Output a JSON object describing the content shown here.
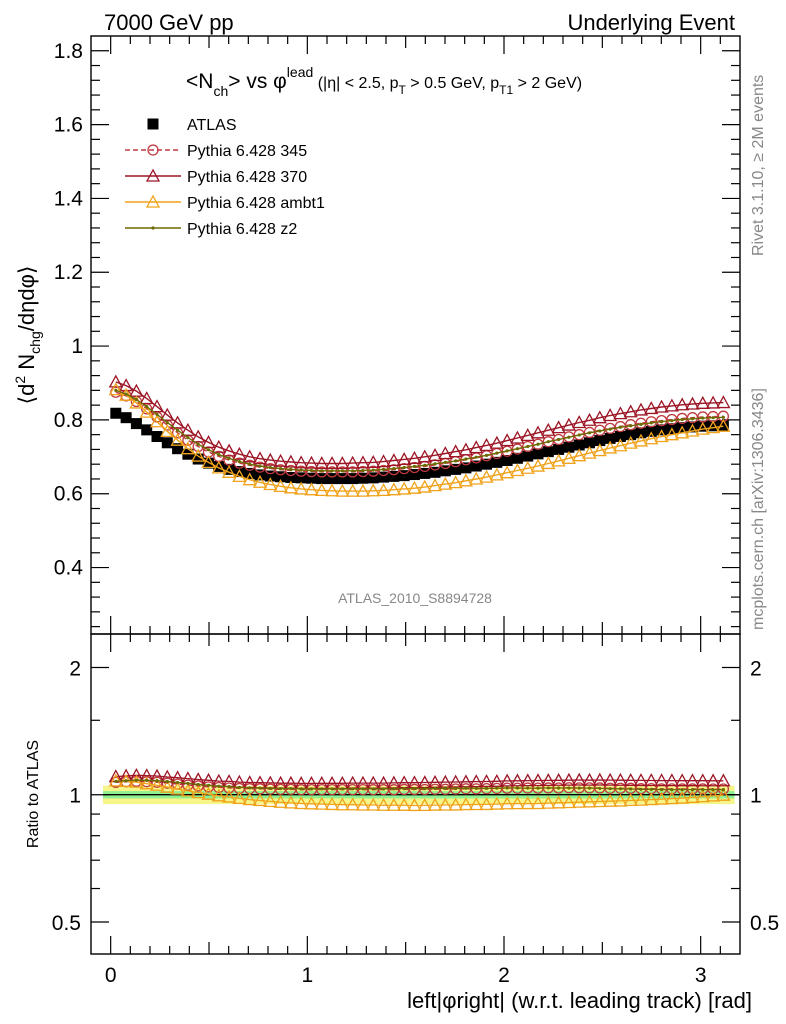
{
  "header": {
    "left": "7000 GeV pp",
    "right": "Underlying Event"
  },
  "title": {
    "main": "<N",
    "main_sub": "ch",
    "vs": "> vs φ",
    "vs_sup": "lead",
    "cuts_a": " (|η| < 2.5, p",
    "cuts_a_sub": "T",
    "cuts_b": " > 0.5 GeV, p",
    "cuts_b_sub": "T1",
    "cuts_c": " > 2 GeV)"
  },
  "side_labels": {
    "rivet": "Rivet 3.1.10, ≥ 2M events",
    "mcplots": "mcplots.cern.ch [arXiv:1306.3436]"
  },
  "analysis_tag": "ATLAS_2010_S8894728",
  "main_ylabel": "⟨d² N_chg/dηdφ⟩",
  "ratio_ylabel": "Ratio to ATLAS",
  "xlabel": "left|φright| (w.r.t. leading track) [rad]",
  "colors": {
    "atlas": "#000000",
    "p345": "#c0393f",
    "p370": "#9b1525",
    "ambt1": "#f0a21a",
    "z2": "#6b6b00",
    "band_inner": "#f5f58a",
    "band_outer": "#8ff08f"
  },
  "chart_data": [
    {
      "type": "scatter",
      "panel": "main",
      "x": [
        0.0262,
        0.0785,
        0.1309,
        0.1833,
        0.2356,
        0.288,
        0.3403,
        0.3927,
        0.4451,
        0.4974,
        0.5498,
        0.6021,
        0.6545,
        0.7069,
        0.7592,
        0.8116,
        0.8639,
        0.9163,
        0.9687,
        1.021,
        1.0734,
        1.1257,
        1.1781,
        1.2305,
        1.2828,
        1.3352,
        1.3875,
        1.4399,
        1.4923,
        1.5446,
        1.597,
        1.6493,
        1.7017,
        1.7541,
        1.8064,
        1.8588,
        1.9111,
        1.9635,
        2.0159,
        2.0682,
        2.1206,
        2.1729,
        2.2253,
        2.2777,
        2.33,
        2.3824,
        2.4347,
        2.4871,
        2.5395,
        2.5918,
        2.6442,
        2.6965,
        2.7489,
        2.8013,
        2.8536,
        2.906,
        2.9583,
        3.0107,
        3.0631,
        3.1154
      ],
      "xlim": [
        -0.1,
        3.2
      ],
      "ylim": [
        0.22,
        1.84
      ],
      "yticks": [
        0.4,
        0.6,
        0.8,
        1,
        1.2,
        1.4,
        1.6,
        1.8
      ],
      "legend_placement": "top-left",
      "series": [
        {
          "name": "ATLAS",
          "marker": "filled-square",
          "values": [
            0.818,
            0.806,
            0.79,
            0.773,
            0.755,
            0.738,
            0.722,
            0.707,
            0.694,
            0.683,
            0.674,
            0.666,
            0.66,
            0.655,
            0.651,
            0.648,
            0.646,
            0.644,
            0.643,
            0.642,
            0.641,
            0.641,
            0.641,
            0.641,
            0.642,
            0.643,
            0.645,
            0.647,
            0.649,
            0.652,
            0.655,
            0.658,
            0.662,
            0.666,
            0.67,
            0.675,
            0.68,
            0.685,
            0.69,
            0.696,
            0.702,
            0.708,
            0.714,
            0.72,
            0.726,
            0.732,
            0.738,
            0.744,
            0.75,
            0.755,
            0.76,
            0.765,
            0.769,
            0.773,
            0.776,
            0.779,
            0.781,
            0.783,
            0.784,
            0.785
          ]
        },
        {
          "name": "Pythia 6.428 345",
          "marker": "open-circle",
          "line": "dashed",
          "values": [
            0.875,
            0.865,
            0.85,
            0.83,
            0.808,
            0.786,
            0.765,
            0.745,
            0.728,
            0.713,
            0.701,
            0.691,
            0.683,
            0.677,
            0.672,
            0.668,
            0.665,
            0.663,
            0.661,
            0.66,
            0.659,
            0.659,
            0.659,
            0.659,
            0.66,
            0.661,
            0.663,
            0.665,
            0.668,
            0.671,
            0.674,
            0.678,
            0.682,
            0.687,
            0.692,
            0.697,
            0.703,
            0.709,
            0.715,
            0.721,
            0.728,
            0.734,
            0.741,
            0.747,
            0.754,
            0.76,
            0.766,
            0.772,
            0.777,
            0.782,
            0.787,
            0.791,
            0.795,
            0.798,
            0.801,
            0.804,
            0.806,
            0.808,
            0.809,
            0.81
          ]
        },
        {
          "name": "Pythia 6.428 370",
          "marker": "open-triangle",
          "line": "solid",
          "values": [
            0.903,
            0.893,
            0.878,
            0.858,
            0.836,
            0.813,
            0.792,
            0.772,
            0.754,
            0.739,
            0.726,
            0.716,
            0.707,
            0.7,
            0.695,
            0.691,
            0.688,
            0.686,
            0.684,
            0.683,
            0.682,
            0.682,
            0.682,
            0.683,
            0.684,
            0.685,
            0.687,
            0.69,
            0.693,
            0.696,
            0.7,
            0.704,
            0.709,
            0.714,
            0.719,
            0.725,
            0.731,
            0.737,
            0.744,
            0.751,
            0.758,
            0.765,
            0.772,
            0.779,
            0.786,
            0.793,
            0.799,
            0.806,
            0.812,
            0.817,
            0.822,
            0.827,
            0.831,
            0.835,
            0.838,
            0.841,
            0.843,
            0.845,
            0.846,
            0.847
          ]
        },
        {
          "name": "Pythia 6.428 ambt1",
          "marker": "open-triangle",
          "line": "solid",
          "values": [
            0.882,
            0.867,
            0.846,
            0.821,
            0.795,
            0.769,
            0.745,
            0.722,
            0.702,
            0.685,
            0.67,
            0.658,
            0.647,
            0.638,
            0.631,
            0.625,
            0.62,
            0.616,
            0.613,
            0.611,
            0.609,
            0.608,
            0.607,
            0.607,
            0.607,
            0.608,
            0.609,
            0.611,
            0.613,
            0.615,
            0.618,
            0.622,
            0.626,
            0.63,
            0.635,
            0.64,
            0.645,
            0.651,
            0.657,
            0.663,
            0.669,
            0.675,
            0.682,
            0.689,
            0.696,
            0.703,
            0.71,
            0.717,
            0.724,
            0.73,
            0.737,
            0.743,
            0.749,
            0.755,
            0.76,
            0.765,
            0.77,
            0.775,
            0.779,
            0.783
          ]
        },
        {
          "name": "Pythia 6.428 z2",
          "marker": "small-dot",
          "line": "solid",
          "values": [
            0.88,
            0.87,
            0.855,
            0.836,
            0.815,
            0.793,
            0.772,
            0.752,
            0.734,
            0.719,
            0.706,
            0.696,
            0.687,
            0.68,
            0.675,
            0.671,
            0.668,
            0.666,
            0.664,
            0.663,
            0.662,
            0.662,
            0.662,
            0.662,
            0.663,
            0.664,
            0.666,
            0.668,
            0.671,
            0.674,
            0.677,
            0.681,
            0.685,
            0.689,
            0.694,
            0.699,
            0.704,
            0.71,
            0.716,
            0.722,
            0.728,
            0.734,
            0.741,
            0.747,
            0.753,
            0.759,
            0.765,
            0.77,
            0.775,
            0.78,
            0.784,
            0.788,
            0.792,
            0.795,
            0.798,
            0.801,
            0.803,
            0.805,
            0.806,
            0.807
          ]
        }
      ]
    },
    {
      "type": "scatter",
      "panel": "ratio",
      "ylabel": "Ratio to ATLAS",
      "ylim": [
        0.42,
        2.4
      ],
      "yscale": "log",
      "yticks": [
        0.5,
        1,
        2
      ],
      "band": {
        "inner": [
          0.98,
          1.02
        ],
        "outer": [
          0.95,
          1.05
        ]
      },
      "xticks": [
        0,
        1,
        2,
        3
      ],
      "series_ratio_mean": [
        {
          "name": "Pythia 6.428 345",
          "value": 1.055
        },
        {
          "name": "Pythia 6.428 370",
          "value": 1.09
        },
        {
          "name": "Pythia 6.428 ambt1",
          "value": 0.99
        },
        {
          "name": "Pythia 6.428 z2",
          "value": 1.03
        }
      ]
    }
  ]
}
